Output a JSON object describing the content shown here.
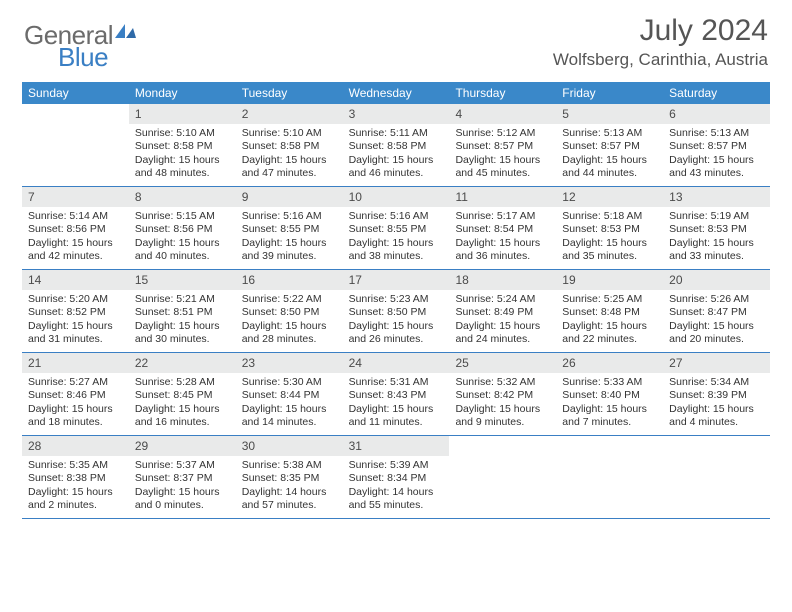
{
  "brand": {
    "name_gray": "General",
    "name_blue": "Blue"
  },
  "header": {
    "title": "July 2024",
    "location": "Wolfsberg, Carinthia, Austria"
  },
  "colors": {
    "header_bar": "#3a88c9",
    "week_divider": "#3a7fc4",
    "daynum_bg": "#e9eaea",
    "text_dark": "#333333",
    "text_muted": "#555555",
    "logo_gray": "#6b6b6b",
    "logo_blue": "#3a7fc4"
  },
  "day_names": [
    "Sunday",
    "Monday",
    "Tuesday",
    "Wednesday",
    "Thursday",
    "Friday",
    "Saturday"
  ],
  "weeks": [
    [
      {
        "day": "",
        "sunrise": "",
        "sunset": "",
        "daylight1": "",
        "daylight2": ""
      },
      {
        "day": "1",
        "sunrise": "Sunrise: 5:10 AM",
        "sunset": "Sunset: 8:58 PM",
        "daylight1": "Daylight: 15 hours",
        "daylight2": "and 48 minutes."
      },
      {
        "day": "2",
        "sunrise": "Sunrise: 5:10 AM",
        "sunset": "Sunset: 8:58 PM",
        "daylight1": "Daylight: 15 hours",
        "daylight2": "and 47 minutes."
      },
      {
        "day": "3",
        "sunrise": "Sunrise: 5:11 AM",
        "sunset": "Sunset: 8:58 PM",
        "daylight1": "Daylight: 15 hours",
        "daylight2": "and 46 minutes."
      },
      {
        "day": "4",
        "sunrise": "Sunrise: 5:12 AM",
        "sunset": "Sunset: 8:57 PM",
        "daylight1": "Daylight: 15 hours",
        "daylight2": "and 45 minutes."
      },
      {
        "day": "5",
        "sunrise": "Sunrise: 5:13 AM",
        "sunset": "Sunset: 8:57 PM",
        "daylight1": "Daylight: 15 hours",
        "daylight2": "and 44 minutes."
      },
      {
        "day": "6",
        "sunrise": "Sunrise: 5:13 AM",
        "sunset": "Sunset: 8:57 PM",
        "daylight1": "Daylight: 15 hours",
        "daylight2": "and 43 minutes."
      }
    ],
    [
      {
        "day": "7",
        "sunrise": "Sunrise: 5:14 AM",
        "sunset": "Sunset: 8:56 PM",
        "daylight1": "Daylight: 15 hours",
        "daylight2": "and 42 minutes."
      },
      {
        "day": "8",
        "sunrise": "Sunrise: 5:15 AM",
        "sunset": "Sunset: 8:56 PM",
        "daylight1": "Daylight: 15 hours",
        "daylight2": "and 40 minutes."
      },
      {
        "day": "9",
        "sunrise": "Sunrise: 5:16 AM",
        "sunset": "Sunset: 8:55 PM",
        "daylight1": "Daylight: 15 hours",
        "daylight2": "and 39 minutes."
      },
      {
        "day": "10",
        "sunrise": "Sunrise: 5:16 AM",
        "sunset": "Sunset: 8:55 PM",
        "daylight1": "Daylight: 15 hours",
        "daylight2": "and 38 minutes."
      },
      {
        "day": "11",
        "sunrise": "Sunrise: 5:17 AM",
        "sunset": "Sunset: 8:54 PM",
        "daylight1": "Daylight: 15 hours",
        "daylight2": "and 36 minutes."
      },
      {
        "day": "12",
        "sunrise": "Sunrise: 5:18 AM",
        "sunset": "Sunset: 8:53 PM",
        "daylight1": "Daylight: 15 hours",
        "daylight2": "and 35 minutes."
      },
      {
        "day": "13",
        "sunrise": "Sunrise: 5:19 AM",
        "sunset": "Sunset: 8:53 PM",
        "daylight1": "Daylight: 15 hours",
        "daylight2": "and 33 minutes."
      }
    ],
    [
      {
        "day": "14",
        "sunrise": "Sunrise: 5:20 AM",
        "sunset": "Sunset: 8:52 PM",
        "daylight1": "Daylight: 15 hours",
        "daylight2": "and 31 minutes."
      },
      {
        "day": "15",
        "sunrise": "Sunrise: 5:21 AM",
        "sunset": "Sunset: 8:51 PM",
        "daylight1": "Daylight: 15 hours",
        "daylight2": "and 30 minutes."
      },
      {
        "day": "16",
        "sunrise": "Sunrise: 5:22 AM",
        "sunset": "Sunset: 8:50 PM",
        "daylight1": "Daylight: 15 hours",
        "daylight2": "and 28 minutes."
      },
      {
        "day": "17",
        "sunrise": "Sunrise: 5:23 AM",
        "sunset": "Sunset: 8:50 PM",
        "daylight1": "Daylight: 15 hours",
        "daylight2": "and 26 minutes."
      },
      {
        "day": "18",
        "sunrise": "Sunrise: 5:24 AM",
        "sunset": "Sunset: 8:49 PM",
        "daylight1": "Daylight: 15 hours",
        "daylight2": "and 24 minutes."
      },
      {
        "day": "19",
        "sunrise": "Sunrise: 5:25 AM",
        "sunset": "Sunset: 8:48 PM",
        "daylight1": "Daylight: 15 hours",
        "daylight2": "and 22 minutes."
      },
      {
        "day": "20",
        "sunrise": "Sunrise: 5:26 AM",
        "sunset": "Sunset: 8:47 PM",
        "daylight1": "Daylight: 15 hours",
        "daylight2": "and 20 minutes."
      }
    ],
    [
      {
        "day": "21",
        "sunrise": "Sunrise: 5:27 AM",
        "sunset": "Sunset: 8:46 PM",
        "daylight1": "Daylight: 15 hours",
        "daylight2": "and 18 minutes."
      },
      {
        "day": "22",
        "sunrise": "Sunrise: 5:28 AM",
        "sunset": "Sunset: 8:45 PM",
        "daylight1": "Daylight: 15 hours",
        "daylight2": "and 16 minutes."
      },
      {
        "day": "23",
        "sunrise": "Sunrise: 5:30 AM",
        "sunset": "Sunset: 8:44 PM",
        "daylight1": "Daylight: 15 hours",
        "daylight2": "and 14 minutes."
      },
      {
        "day": "24",
        "sunrise": "Sunrise: 5:31 AM",
        "sunset": "Sunset: 8:43 PM",
        "daylight1": "Daylight: 15 hours",
        "daylight2": "and 11 minutes."
      },
      {
        "day": "25",
        "sunrise": "Sunrise: 5:32 AM",
        "sunset": "Sunset: 8:42 PM",
        "daylight1": "Daylight: 15 hours",
        "daylight2": "and 9 minutes."
      },
      {
        "day": "26",
        "sunrise": "Sunrise: 5:33 AM",
        "sunset": "Sunset: 8:40 PM",
        "daylight1": "Daylight: 15 hours",
        "daylight2": "and 7 minutes."
      },
      {
        "day": "27",
        "sunrise": "Sunrise: 5:34 AM",
        "sunset": "Sunset: 8:39 PM",
        "daylight1": "Daylight: 15 hours",
        "daylight2": "and 4 minutes."
      }
    ],
    [
      {
        "day": "28",
        "sunrise": "Sunrise: 5:35 AM",
        "sunset": "Sunset: 8:38 PM",
        "daylight1": "Daylight: 15 hours",
        "daylight2": "and 2 minutes."
      },
      {
        "day": "29",
        "sunrise": "Sunrise: 5:37 AM",
        "sunset": "Sunset: 8:37 PM",
        "daylight1": "Daylight: 15 hours",
        "daylight2": "and 0 minutes."
      },
      {
        "day": "30",
        "sunrise": "Sunrise: 5:38 AM",
        "sunset": "Sunset: 8:35 PM",
        "daylight1": "Daylight: 14 hours",
        "daylight2": "and 57 minutes."
      },
      {
        "day": "31",
        "sunrise": "Sunrise: 5:39 AM",
        "sunset": "Sunset: 8:34 PM",
        "daylight1": "Daylight: 14 hours",
        "daylight2": "and 55 minutes."
      },
      {
        "day": "",
        "sunrise": "",
        "sunset": "",
        "daylight1": "",
        "daylight2": ""
      },
      {
        "day": "",
        "sunrise": "",
        "sunset": "",
        "daylight1": "",
        "daylight2": ""
      },
      {
        "day": "",
        "sunrise": "",
        "sunset": "",
        "daylight1": "",
        "daylight2": ""
      }
    ]
  ]
}
